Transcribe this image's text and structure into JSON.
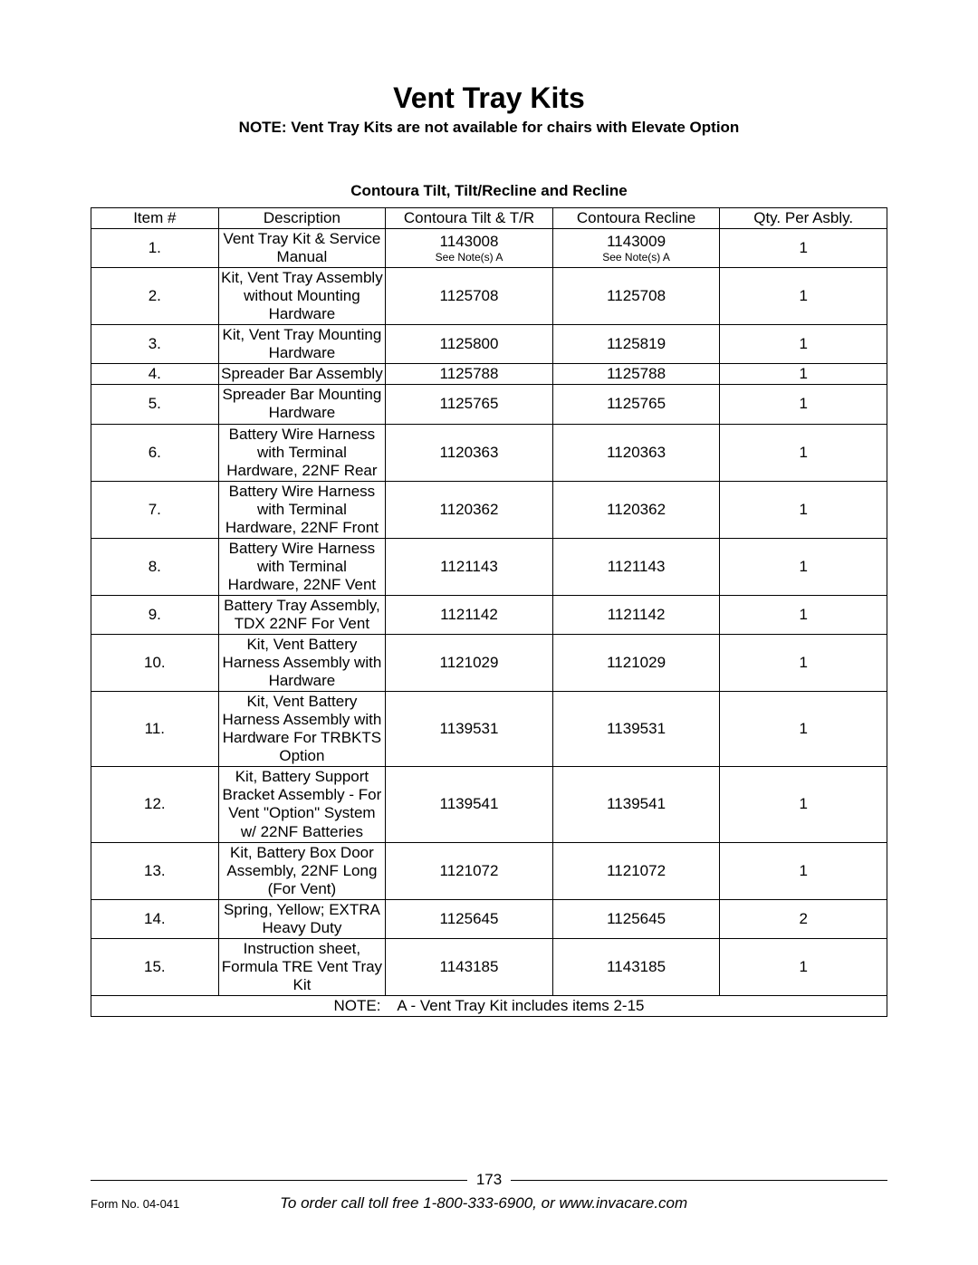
{
  "title": "Vent Tray Kits",
  "subtitle_note": "NOTE: Vent Tray Kits are not available for chairs with Elevate Option",
  "subheading": "Contoura Tilt, Tilt/Recline and Recline",
  "columns": {
    "item": "Item #",
    "description": "Description",
    "tilt": "Contoura Tilt & T/R",
    "recline": "Contoura Recline",
    "qty": "Qty. Per Asbly."
  },
  "rows": [
    {
      "item": "1.",
      "description": "Vent Tray Kit & Service Manual",
      "tilt": "1143008",
      "tilt_note": "See Note(s) A",
      "recline": "1143009",
      "recline_note": "See Note(s) A",
      "qty": "1"
    },
    {
      "item": "2.",
      "description": "Kit, Vent Tray Assembly without Mounting Hardware",
      "tilt": "1125708",
      "recline": "1125708",
      "qty": "1"
    },
    {
      "item": "3.",
      "description": "Kit, Vent Tray Mounting Hardware",
      "tilt": "1125800",
      "recline": "1125819",
      "qty": "1"
    },
    {
      "item": "4.",
      "description": "Spreader Bar Assembly",
      "tilt": "1125788",
      "recline": "1125788",
      "qty": "1"
    },
    {
      "item": "5.",
      "description": "Spreader Bar Mounting Hardware",
      "tilt": "1125765",
      "recline": "1125765",
      "qty": "1"
    },
    {
      "item": "6.",
      "description": "Battery Wire Harness with Terminal Hardware, 22NF Rear",
      "tilt": "1120363",
      "recline": "1120363",
      "qty": "1"
    },
    {
      "item": "7.",
      "description": "Battery Wire Harness with Terminal Hardware, 22NF Front",
      "tilt": "1120362",
      "recline": "1120362",
      "qty": "1"
    },
    {
      "item": "8.",
      "description": "Battery Wire Harness with Terminal Hardware, 22NF Vent",
      "tilt": "1121143",
      "recline": "1121143",
      "qty": "1"
    },
    {
      "item": "9.",
      "description": "Battery Tray Assembly, TDX 22NF For Vent",
      "tilt": "1121142",
      "recline": "1121142",
      "qty": "1"
    },
    {
      "item": "10.",
      "description": "Kit, Vent Battery Harness Assembly with Hardware",
      "tilt": "1121029",
      "recline": "1121029",
      "qty": "1"
    },
    {
      "item": "11.",
      "description": "Kit, Vent Battery Harness Assembly with Hardware For TRBKTS Option",
      "tilt": "1139531",
      "recline": "1139531",
      "qty": "1"
    },
    {
      "item": "12.",
      "description": "Kit, Battery Support Bracket Assembly - For Vent \"Option\" System w/ 22NF Batteries",
      "tilt": "1139541",
      "recline": "1139541",
      "qty": "1"
    },
    {
      "item": "13.",
      "description": "Kit, Battery Box Door Assembly, 22NF Long (For Vent)",
      "tilt": "1121072",
      "recline": "1121072",
      "qty": "1"
    },
    {
      "item": "14.",
      "description": "Spring, Yellow; EXTRA Heavy Duty",
      "tilt": "1125645",
      "recline": "1125645",
      "qty": "2"
    },
    {
      "item": "15.",
      "description": "Instruction sheet, Formula TRE Vent Tray Kit",
      "tilt": "1143185",
      "recline": "1143185",
      "qty": "1"
    }
  ],
  "footnote": "NOTE:    A - Vent Tray Kit includes items 2-15",
  "page_number": "173",
  "form_no": "Form No. 04-041",
  "order_line": "To order call toll free 1-800-333-6900, or www.invacare.com"
}
